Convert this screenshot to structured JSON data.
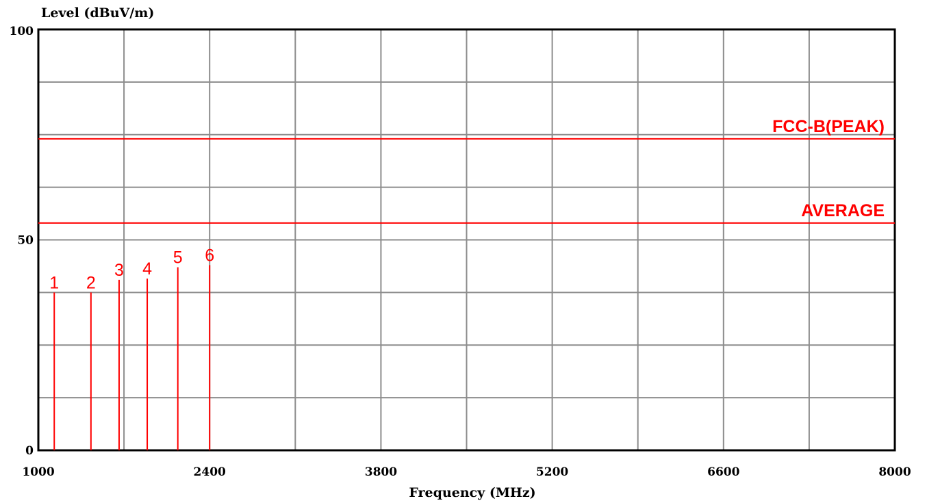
{
  "chart_data": {
    "type": "line",
    "title": "",
    "ylabel": "Level (dBuV/m)",
    "xlabel": "Frequency (MHz)",
    "xlim": [
      1000,
      8000
    ],
    "ylim": [
      0,
      100
    ],
    "x_ticks": [
      "1000",
      "2400",
      "3800",
      "5200",
      "6600",
      "8000"
    ],
    "y_ticks": [
      "0",
      "50",
      "100"
    ],
    "grid": true,
    "x_grid_step": 700,
    "y_grid_step": 12.5,
    "limit_lines": [
      {
        "name": "FCC-B(PEAK)",
        "y": 74,
        "color": "#ff0000"
      },
      {
        "name": "AVERAGE",
        "y": 54,
        "color": "#ff0000"
      }
    ],
    "markers": [
      {
        "label": "1",
        "x": 1130,
        "y": 37.5
      },
      {
        "label": "2",
        "x": 1430,
        "y": 37.5
      },
      {
        "label": "3",
        "x": 1660,
        "y": 40.5
      },
      {
        "label": "4",
        "x": 1890,
        "y": 40.8
      },
      {
        "label": "5",
        "x": 2140,
        "y": 43.5
      },
      {
        "label": "6",
        "x": 2400,
        "y": 44
      }
    ]
  }
}
